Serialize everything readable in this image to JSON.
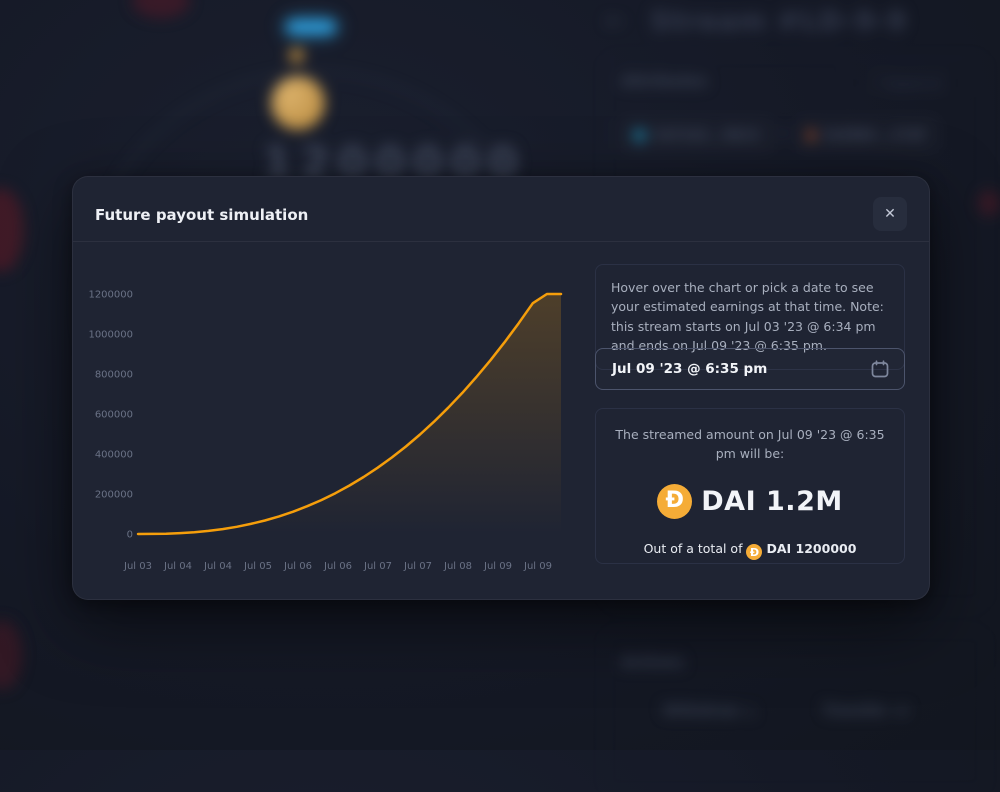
{
  "background": {
    "back_icon": "←",
    "header_title": "Stream #LD-9-9",
    "attributes_label": "Attributes",
    "expand_button": "Expand all",
    "expand_icon": "⤢",
    "chip_from_addr": "0xF1A2...9bC4",
    "chip_to_addr": "0xE8B3...27dF",
    "chip_arrow": "→",
    "gauge_amount": "1200000",
    "actions_label": "Actions",
    "action_withdraw": "Withdraw",
    "action_withdraw_icon": "⤓",
    "action_transfer": "Transfer",
    "action_transfer_icon": "⇄",
    "chip_from_dot_color": "#1f7a9c",
    "chip_to_dot_color": "#c2592a"
  },
  "modal": {
    "title": "Future payout simulation",
    "close_icon": "✕",
    "sidebar": {
      "info_text": "Hover over the chart or pick a date to see your estimated earnings at that time. Note: this stream starts on Jul 03 '23 @ 6:34 pm and ends on Jul 09 '23 @ 6:35 pm.",
      "date_value": "Jul 09 '23 @ 6:35 pm",
      "result_intro": "The streamed amount on Jul 09 '23 @ 6:35 pm will be:",
      "dai_symbol": "Đ",
      "amount_label": "DAI 1.2M",
      "total_prefix": "Out of a total of",
      "total_label": "DAI 1200000"
    }
  },
  "chart_data": {
    "type": "area",
    "title": "",
    "xlabel": "",
    "ylabel": "",
    "x_ticks": [
      "Jul 03",
      "Jul 04",
      "Jul 04",
      "Jul 05",
      "Jul 06",
      "Jul 06",
      "Jul 07",
      "Jul 07",
      "Jul 08",
      "Jul 09",
      "Jul 09"
    ],
    "y_ticks": [
      "0",
      "200000",
      "400000",
      "600000",
      "800000",
      "1000000",
      "1200000"
    ],
    "ylim": [
      0,
      1200000
    ],
    "grid": false,
    "legend": "none",
    "series": [
      {
        "name": "streamed-amount",
        "color": "#F59E0B",
        "fill_top": "rgba(245,158,11,0.22)",
        "fill_bottom": "rgba(245,158,11,0.0)",
        "points": [
          [
            0.0,
            0
          ],
          [
            0.0333,
            278
          ],
          [
            0.0667,
            1576
          ],
          [
            0.1,
            4327
          ],
          [
            0.1333,
            8900
          ],
          [
            0.1667,
            15567
          ],
          [
            0.2,
            24537
          ],
          [
            0.2333,
            36058
          ],
          [
            0.2667,
            50335
          ],
          [
            0.3,
            67600
          ],
          [
            0.3333,
            87958
          ],
          [
            0.3667,
            111600
          ],
          [
            0.4,
            138800
          ],
          [
            0.4333,
            169500
          ],
          [
            0.4667,
            204100
          ],
          [
            0.5,
            242500
          ],
          [
            0.5333,
            284900
          ],
          [
            0.5667,
            331600
          ],
          [
            0.6,
            382400
          ],
          [
            0.6333,
            437700
          ],
          [
            0.6667,
            497700
          ],
          [
            0.7,
            562200
          ],
          [
            0.7333,
            631400
          ],
          [
            0.7667,
            705700
          ],
          [
            0.8,
            785000
          ],
          [
            0.8333,
            869200
          ],
          [
            0.8667,
            959000
          ],
          [
            0.9,
            1053800
          ],
          [
            0.9333,
            1154000
          ],
          [
            0.9667,
            1200000
          ],
          [
            1.0,
            1200000
          ]
        ]
      }
    ]
  },
  "colors": {
    "page_bg": "#151926",
    "modal_bg": "#1f2433",
    "accent_orange": "#F59E0B",
    "dai_orange": "#F5AC37",
    "text_primary": "#F2F4F8",
    "text_secondary": "#A8AFBE",
    "axis_text": "#6A7286",
    "blue_badge": "#2D9BD8"
  }
}
